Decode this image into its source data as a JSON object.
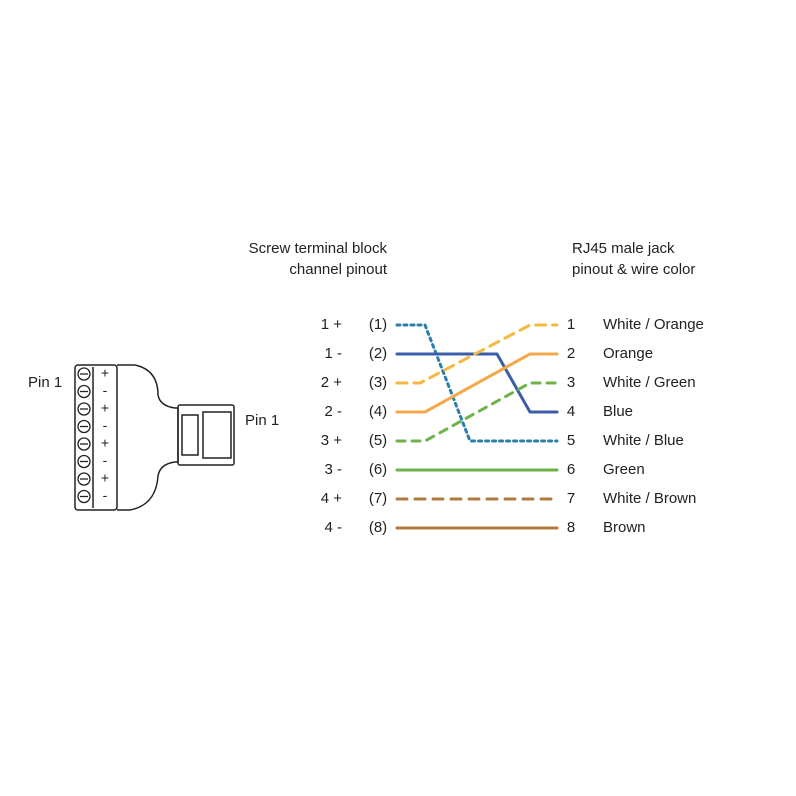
{
  "header": {
    "left_title": [
      "Screw terminal block",
      "channel pinout"
    ],
    "right_title": [
      "RJ45 male jack",
      "pinout & wire color"
    ]
  },
  "connector": {
    "left_pin_label": "Pin 1",
    "right_pin_label": "Pin 1",
    "signs": [
      "+",
      "-",
      "+",
      "-",
      "+",
      "-",
      "+",
      "-"
    ]
  },
  "rows": [
    {
      "terminal": "1 +",
      "channel": "(1)",
      "pin": "1",
      "wire": "White / Orange"
    },
    {
      "terminal": "1 -",
      "channel": "(2)",
      "pin": "2",
      "wire": "Orange"
    },
    {
      "terminal": "2 +",
      "channel": "(3)",
      "pin": "3",
      "wire": "White / Green"
    },
    {
      "terminal": "2 -",
      "channel": "(4)",
      "pin": "4",
      "wire": "Blue"
    },
    {
      "terminal": "3 +",
      "channel": "(5)",
      "pin": "5",
      "wire": "White / Blue"
    },
    {
      "terminal": "3 -",
      "channel": "(6)",
      "pin": "6",
      "wire": "Green"
    },
    {
      "terminal": "4 +",
      "channel": "(7)",
      "pin": "7",
      "wire": "White / Brown"
    },
    {
      "terminal": "4 -",
      "channel": "(8)",
      "pin": "8",
      "wire": "Brown"
    }
  ]
}
